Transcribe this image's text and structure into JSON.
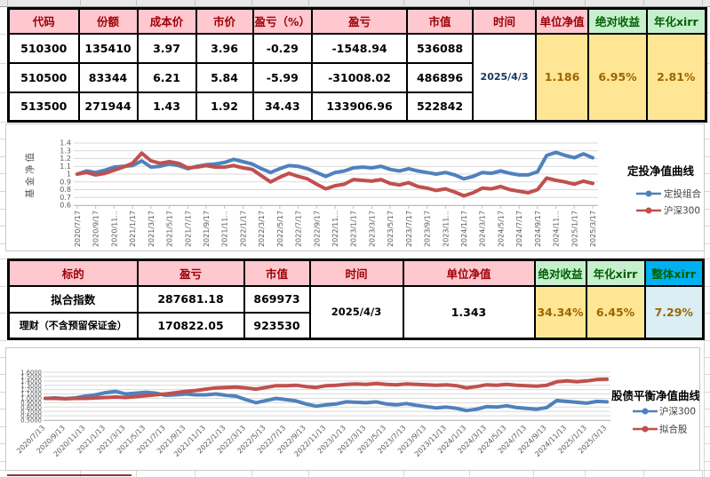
{
  "colors": {
    "header-pink": "#FFC7CE",
    "header-red-text": "#9C0006",
    "good-green-bg": "#C6EFCE",
    "good-green-text": "#006100",
    "neutral-yellow-bg": "#FFE694",
    "neutral-brown-text": "#9C6500",
    "blue-header": "#00B0F0",
    "light-blue-bg": "#DAEEF3",
    "navy-date": "#17375E",
    "series-blue": "#4F81BD",
    "series-red": "#C0504D"
  },
  "table1": {
    "columns": [
      "代码",
      "份额",
      "成本价",
      "市价",
      "盈亏（%）",
      "盈亏",
      "市值",
      "时间",
      "单位净值",
      "绝对收益",
      "年化xirr"
    ],
    "rows": [
      [
        "510300",
        "135410",
        "3.97",
        "3.96",
        "-0.29",
        "-1548.94",
        "536088"
      ],
      [
        "510500",
        "83344",
        "6.21",
        "5.84",
        "-5.99",
        "-31008.02",
        "486896"
      ],
      [
        "513500",
        "271944",
        "1.43",
        "1.92",
        "34.43",
        "133906.96",
        "522842"
      ]
    ],
    "time": "2025/4/3",
    "unit_nav": "1.186",
    "abs_return": "6.95%",
    "annual_xirr": "2.81%"
  },
  "table2": {
    "columns": [
      "标的",
      "盈亏",
      "市值",
      "时间",
      "单位净值",
      "绝对收益",
      "年化xirr",
      "整体xirr"
    ],
    "rows": [
      [
        "拟合指数",
        "287681.18",
        "869973"
      ],
      [
        "理财（不含预留保证金）",
        "170822.05",
        "923530"
      ]
    ],
    "time": "2025/4/3",
    "unit_nav": "1.343",
    "abs_return": "34.34%",
    "annual_xirr": "6.45%",
    "overall_xirr": "7.29%"
  },
  "chart_data": [
    {
      "type": "line",
      "title": "定投净值曲线",
      "ylabel": "基金净值",
      "ylim": [
        0.6,
        1.4
      ],
      "ytick_labels": [
        "1.4",
        "1.3",
        "1.2",
        "1.1",
        "1",
        "0.9",
        "0.8",
        "0.7",
        "0.6"
      ],
      "grid": true,
      "legend_position": "right",
      "x_interval": "monthly",
      "x_range": [
        "2020/7/17",
        "2025/3/17"
      ],
      "x_tick_labels": [
        "2020/7/17",
        "2020/9/17",
        "2020/11...",
        "2021/1/17",
        "2021/3/17",
        "2021/5/17",
        "2021/7/17",
        "2021/9/17",
        "2021/11...",
        "2022/1/17",
        "2022/3/17",
        "2022/5/17",
        "2022/7/17",
        "2022/9/17",
        "2022/11...",
        "2023/1/17",
        "2023/3/17",
        "2023/5/17",
        "2023/7/17",
        "2023/9/17",
        "2023/11...",
        "2024/1/17",
        "2024/3/17",
        "2024/5/17",
        "2024/7/17",
        "2024/9/17",
        "2024/11...",
        "2025/1/17",
        "2025/3/17"
      ],
      "series": [
        {
          "name": "定投组合",
          "color": "#4F81BD",
          "values": [
            1.0,
            1.04,
            1.02,
            1.05,
            1.09,
            1.1,
            1.11,
            1.17,
            1.09,
            1.1,
            1.13,
            1.11,
            1.07,
            1.1,
            1.12,
            1.13,
            1.15,
            1.19,
            1.16,
            1.13,
            1.07,
            1.02,
            1.07,
            1.11,
            1.1,
            1.07,
            1.02,
            0.97,
            1.02,
            1.04,
            1.08,
            1.09,
            1.08,
            1.1,
            1.06,
            1.04,
            1.07,
            1.04,
            1.02,
            1.0,
            1.02,
            0.99,
            0.94,
            0.97,
            1.02,
            1.01,
            1.04,
            1.01,
            0.99,
            0.99,
            1.03,
            1.24,
            1.28,
            1.24,
            1.21,
            1.26,
            1.21
          ]
        },
        {
          "name": "沪深300",
          "color": "#C0504D",
          "values": [
            1.0,
            1.02,
            0.99,
            1.01,
            1.05,
            1.09,
            1.14,
            1.27,
            1.17,
            1.14,
            1.16,
            1.14,
            1.08,
            1.09,
            1.11,
            1.09,
            1.09,
            1.11,
            1.08,
            1.06,
            0.98,
            0.9,
            0.96,
            1.01,
            0.97,
            0.94,
            0.87,
            0.81,
            0.85,
            0.87,
            0.93,
            0.92,
            0.91,
            0.93,
            0.88,
            0.86,
            0.89,
            0.84,
            0.82,
            0.79,
            0.81,
            0.77,
            0.72,
            0.76,
            0.82,
            0.81,
            0.84,
            0.8,
            0.78,
            0.76,
            0.8,
            0.95,
            0.92,
            0.9,
            0.87,
            0.91,
            0.88
          ]
        }
      ]
    },
    {
      "type": "line",
      "title": "股债平衡净值曲线",
      "ylabel": "",
      "ylim": [
        0.5,
        1.6
      ],
      "ytick_labels": [
        "1.6000",
        "1.5000",
        "1.4000",
        "1.3000",
        "1.2000",
        "1.1000",
        "1.0000",
        "0.9000",
        "0.8000",
        "0.7000",
        "0.6000",
        "0.5000"
      ],
      "grid": true,
      "legend_position": "right",
      "x_interval": "monthly",
      "x_range": [
        "2020/7/13",
        "2025/3/13"
      ],
      "x_tick_labels": [
        "2020/7/13",
        "2020/9/13",
        "2020/11/13",
        "2021/1/13",
        "2021/3/13",
        "2021/5/13",
        "2021/7/13",
        "2021/9/13",
        "2021/11/13",
        "2022/1/13",
        "2022/3/13",
        "2022/5/13",
        "2022/7/13",
        "2022/9/13",
        "2022/11/13",
        "2023/1/13",
        "2023/3/13",
        "2023/5/13",
        "2023/7/13",
        "2023/9/13",
        "2023/11/13",
        "2024/1/13",
        "2024/3/13",
        "2024/5/13",
        "2024/7/13",
        "2024/9/13",
        "2024/11/13",
        "2025/1/13",
        "2025/3/13"
      ],
      "series": [
        {
          "name": "沪深300",
          "color": "#4F81BD",
          "values": [
            1.0,
            1.01,
            0.99,
            1.01,
            1.05,
            1.08,
            1.13,
            1.16,
            1.1,
            1.12,
            1.14,
            1.12,
            1.07,
            1.08,
            1.1,
            1.08,
            1.08,
            1.1,
            1.07,
            1.05,
            0.97,
            0.9,
            0.95,
            1.0,
            0.97,
            0.94,
            0.87,
            0.82,
            0.85,
            0.87,
            0.92,
            0.91,
            0.9,
            0.92,
            0.87,
            0.85,
            0.88,
            0.84,
            0.81,
            0.78,
            0.8,
            0.77,
            0.72,
            0.75,
            0.81,
            0.8,
            0.83,
            0.79,
            0.77,
            0.75,
            0.79,
            0.95,
            0.93,
            0.91,
            0.89,
            0.93,
            0.92
          ]
        },
        {
          "name": "拟合股",
          "color": "#C0504D",
          "values": [
            1.0,
            1.0,
            0.99,
            1.0,
            1.0,
            1.01,
            1.02,
            1.03,
            1.02,
            1.04,
            1.06,
            1.08,
            1.1,
            1.13,
            1.16,
            1.18,
            1.21,
            1.24,
            1.25,
            1.26,
            1.24,
            1.21,
            1.25,
            1.29,
            1.29,
            1.3,
            1.27,
            1.25,
            1.29,
            1.3,
            1.32,
            1.33,
            1.32,
            1.34,
            1.32,
            1.31,
            1.33,
            1.32,
            1.31,
            1.3,
            1.31,
            1.29,
            1.24,
            1.27,
            1.31,
            1.3,
            1.32,
            1.3,
            1.29,
            1.28,
            1.3,
            1.38,
            1.4,
            1.38,
            1.4,
            1.43,
            1.44
          ]
        }
      ]
    }
  ]
}
